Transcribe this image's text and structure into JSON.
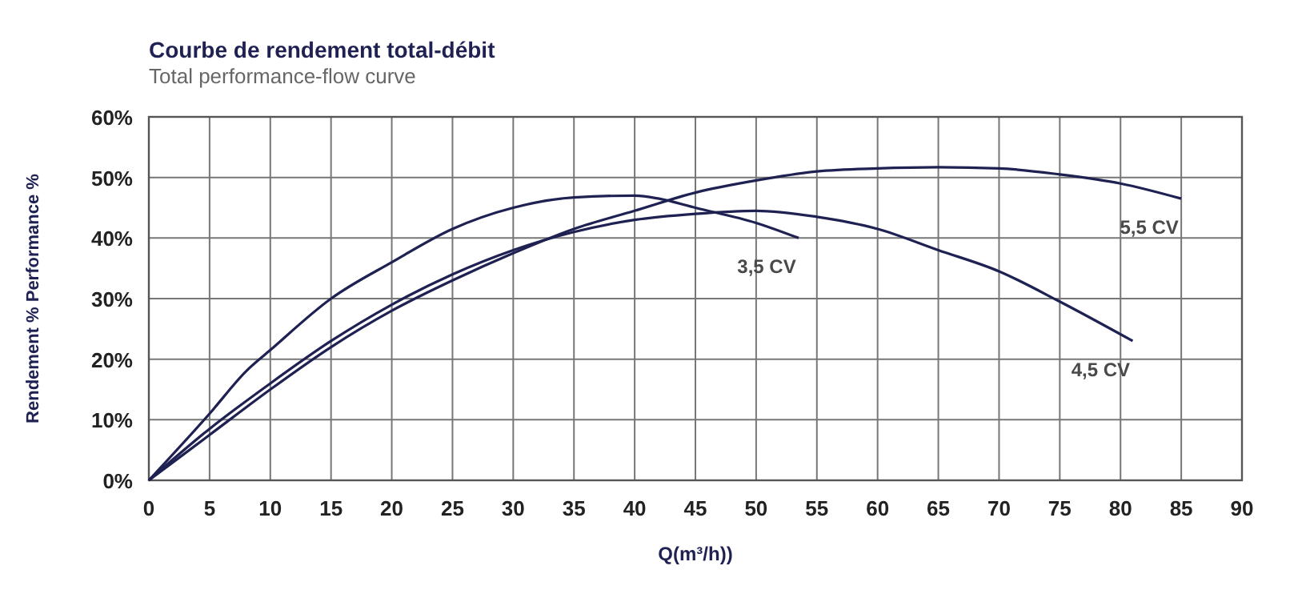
{
  "chart_data": {
    "type": "line",
    "title": "Courbe de rendement total-débit",
    "subtitle": "Total performance-flow curve",
    "xlabel": "Q(m³/h))",
    "ylabel": "Rendement %  Performance %",
    "xlim": [
      0,
      90
    ],
    "xticks": [
      0,
      5,
      10,
      15,
      20,
      25,
      30,
      35,
      40,
      45,
      50,
      55,
      60,
      65,
      70,
      75,
      80,
      85,
      90
    ],
    "ylim": [
      0,
      60
    ],
    "yticks": [
      {
        "value": 0,
        "label": "0%"
      },
      {
        "value": 10,
        "label": "10%"
      },
      {
        "value": 20,
        "label": "20%"
      },
      {
        "value": 30,
        "label": "30%"
      },
      {
        "value": 40,
        "label": "40%"
      },
      {
        "value": 50,
        "label": "50%"
      },
      {
        "value": 60,
        "label": "60%"
      }
    ],
    "grid": true,
    "marker": "none",
    "line_style": "solid",
    "series": [
      {
        "name": "3,5 CV",
        "color": "#1f2152",
        "x": [
          0,
          5,
          8,
          10,
          15,
          20,
          25,
          30,
          35,
          40,
          42,
          45,
          50,
          53.5
        ],
        "values": [
          0,
          11,
          18,
          21.5,
          30,
          36,
          41.5,
          45,
          46.7,
          47,
          46.5,
          45,
          42.5,
          40
        ]
      },
      {
        "name": "4,5 CV",
        "color": "#1f2152",
        "x": [
          0,
          5,
          10,
          15,
          20,
          25,
          30,
          35,
          40,
          45,
          50,
          55,
          60,
          65,
          70,
          75,
          81
        ],
        "values": [
          0,
          8.5,
          16,
          23,
          29,
          34,
          38,
          41,
          43,
          44,
          44.5,
          43.5,
          41.5,
          38,
          34.5,
          29.5,
          23
        ]
      },
      {
        "name": "5,5 CV",
        "color": "#1f2152",
        "x": [
          0,
          5,
          10,
          15,
          20,
          25,
          30,
          35,
          40,
          45,
          50,
          55,
          60,
          65,
          70,
          75,
          80,
          85
        ],
        "values": [
          0,
          7.5,
          15,
          22,
          28,
          33,
          37.5,
          41.5,
          44.5,
          47.5,
          49.5,
          51,
          51.5,
          51.7,
          51.5,
          50.5,
          49,
          46.5
        ]
      }
    ]
  }
}
